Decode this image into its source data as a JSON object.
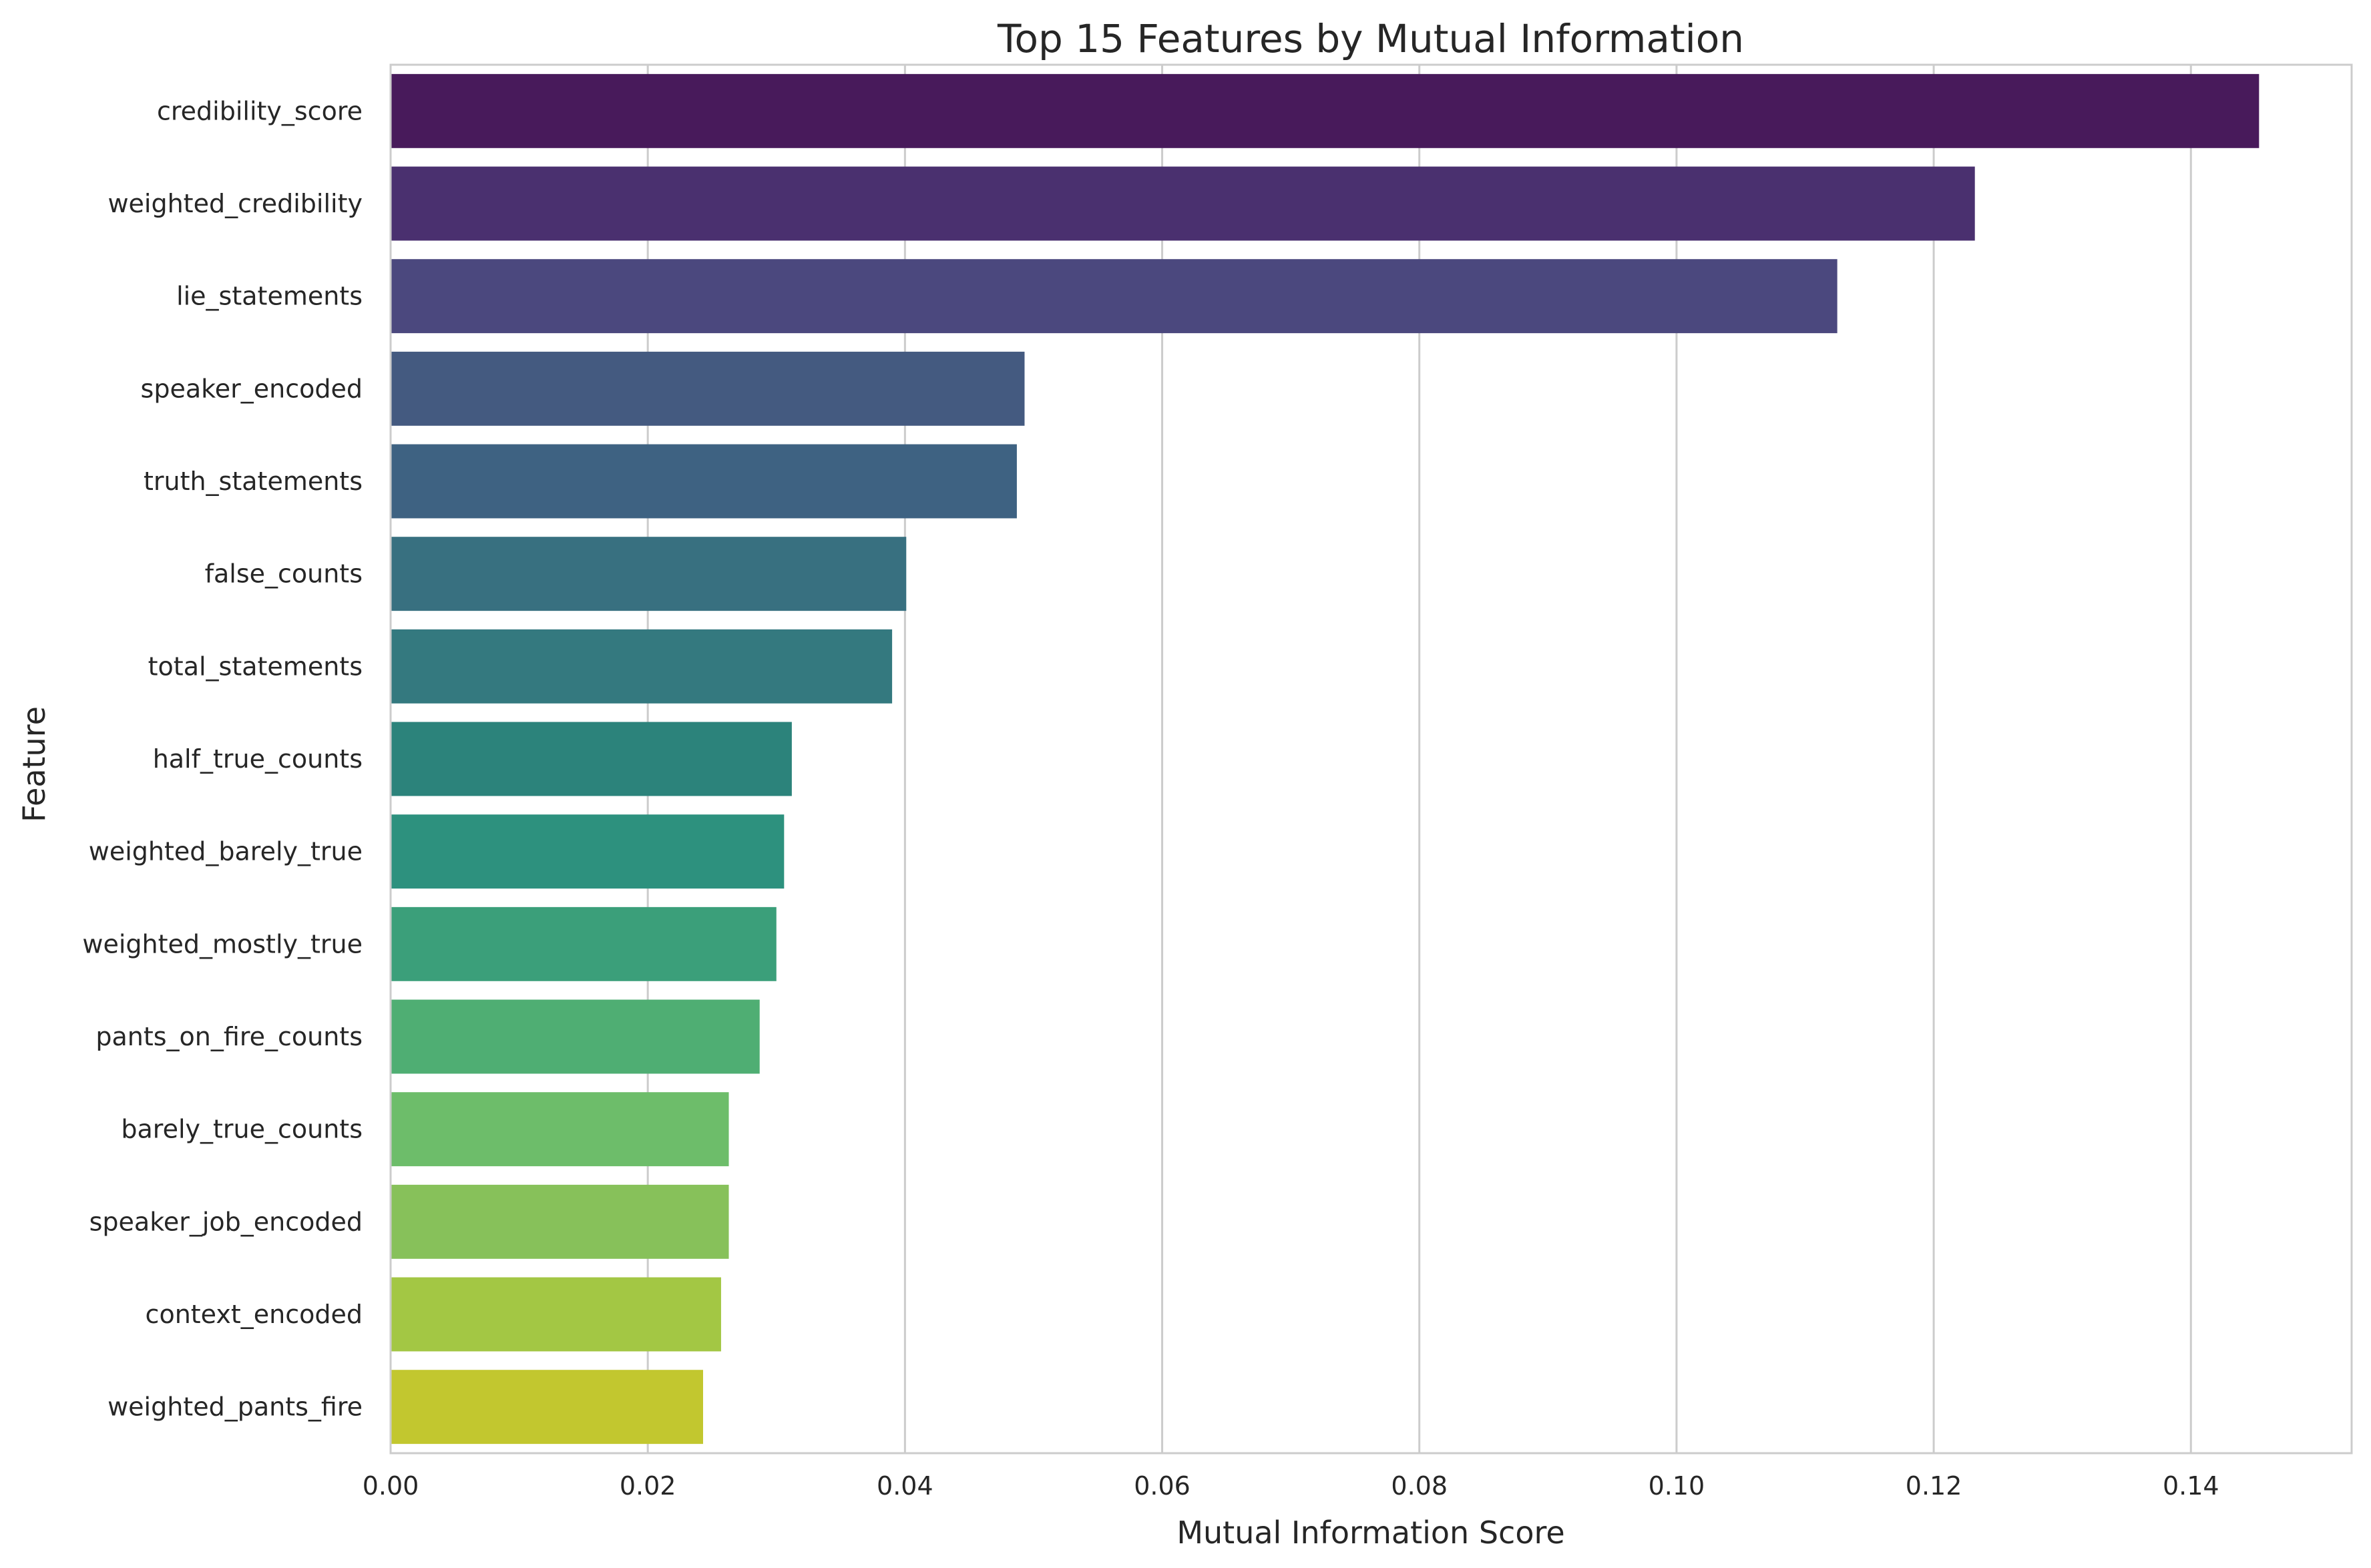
{
  "chart_data": {
    "type": "bar",
    "orientation": "horizontal",
    "title": "Top 15 Features by Mutual Information",
    "xlabel": "Mutual Information Score",
    "ylabel": "Feature",
    "xlim": [
      0,
      0.1525
    ],
    "xticks": [
      "0.00",
      "0.02",
      "0.04",
      "0.06",
      "0.08",
      "0.10",
      "0.12",
      "0.14"
    ],
    "xtick_values": [
      0,
      0.02,
      0.04,
      0.06,
      0.08,
      0.1,
      0.12,
      0.14
    ],
    "grid": "vertical",
    "legend": "none",
    "categories": [
      "credibility_score",
      "weighted_credibility",
      "lie_statements",
      "speaker_encoded",
      "truth_statements",
      "false_counts",
      "total_statements",
      "half_true_counts",
      "weighted_barely_true",
      "weighted_mostly_true",
      "pants_on_fire_counts",
      "barely_true_counts",
      "speaker_job_encoded",
      "context_encoded",
      "weighted_pants_fire"
    ],
    "values": [
      0.1453,
      0.1232,
      0.1125,
      0.0493,
      0.0487,
      0.0401,
      0.039,
      0.0312,
      0.0306,
      0.03,
      0.0287,
      0.0263,
      0.0263,
      0.0257,
      0.0243
    ],
    "colors": [
      "#481a5b",
      "#4a306f",
      "#4b487e",
      "#445a80",
      "#3e6282",
      "#387080",
      "#34797f",
      "#2c837b",
      "#2d917e",
      "#3b9f7a",
      "#4fae73",
      "#6dbd6a",
      "#87c15a",
      "#a3c744",
      "#c2c72f"
    ]
  }
}
